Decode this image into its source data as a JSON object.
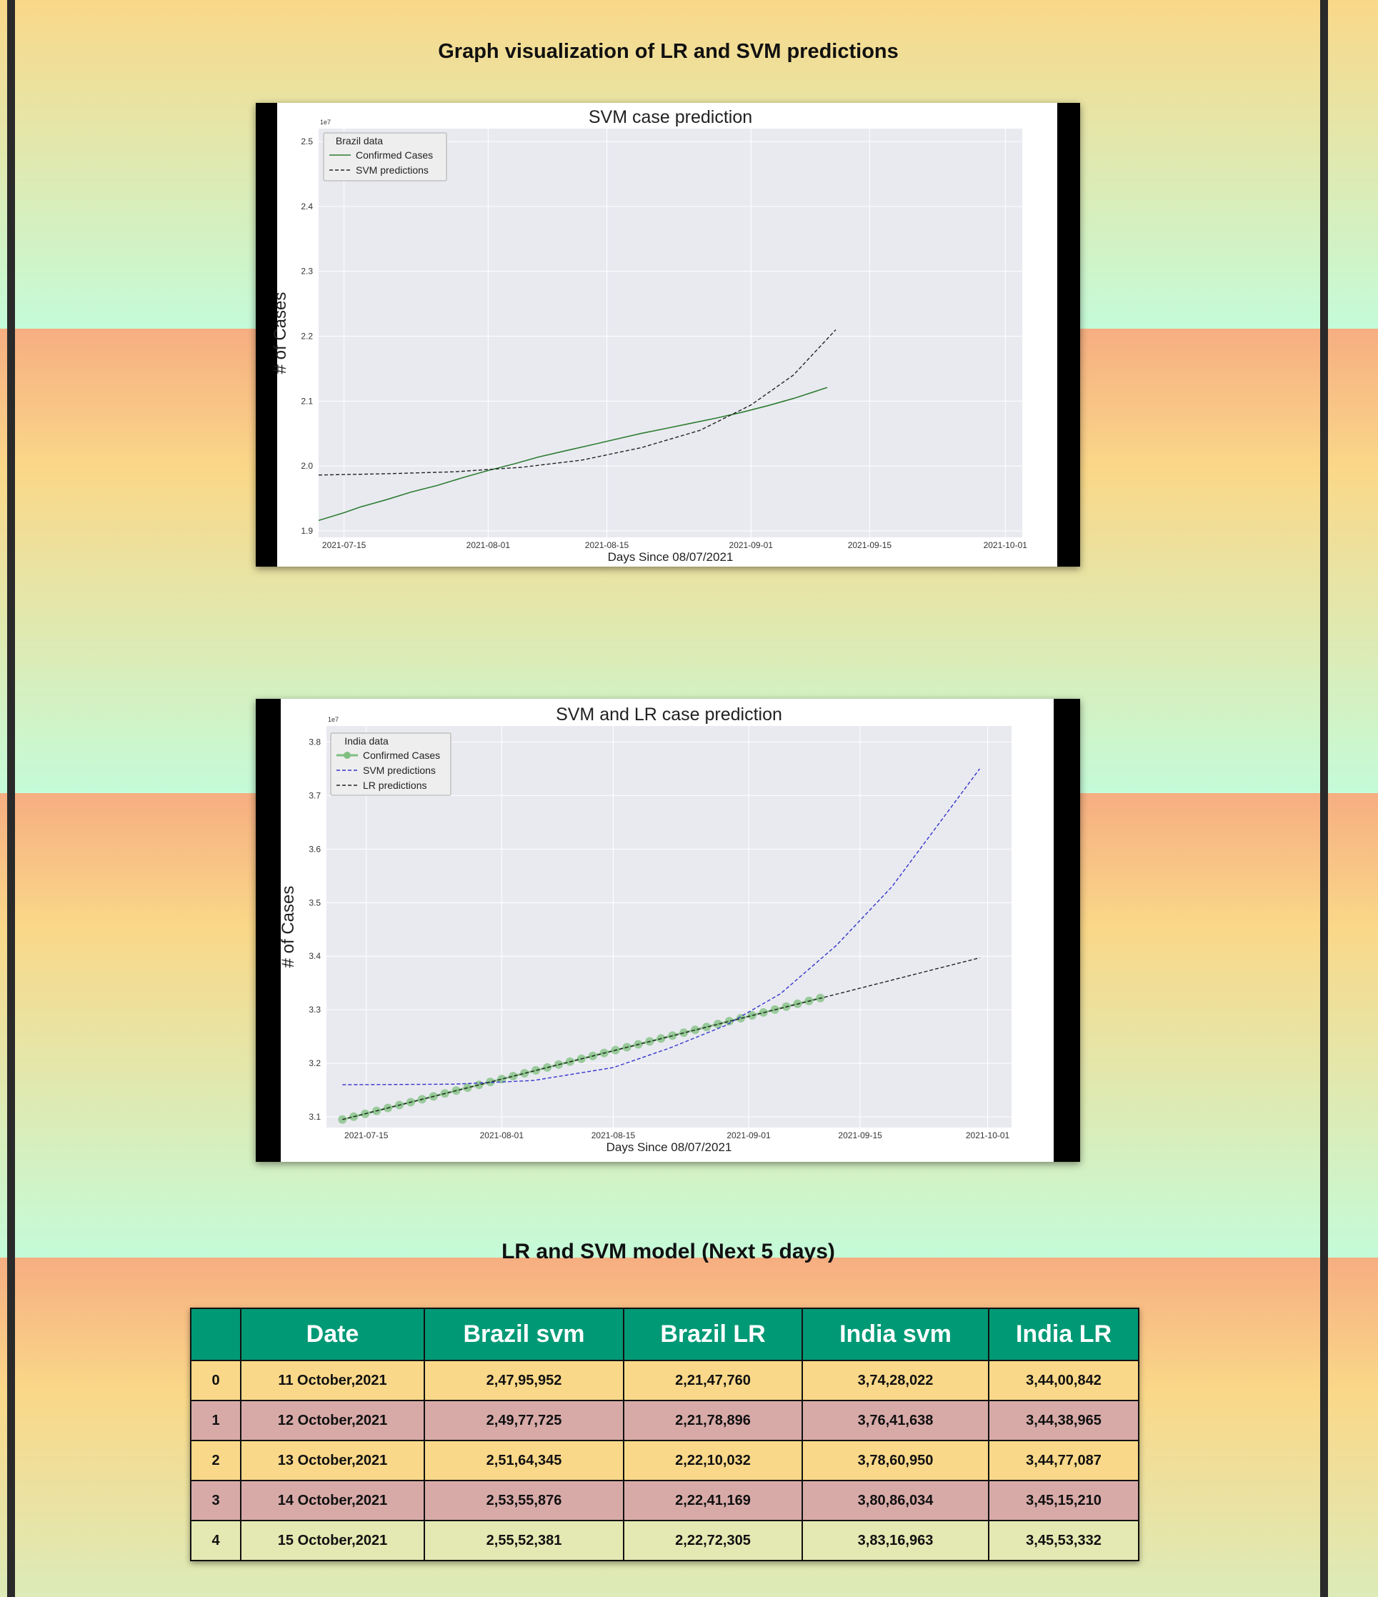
{
  "page": {
    "heading": "Graph visualization of LR and SVM predictions",
    "table_heading": "LR and SVM model (Next 5 days)"
  },
  "charts": [
    {
      "type": "line",
      "title": "SVM case prediction",
      "xlabel": "Days Since 08/07/2021",
      "ylabel": "# of Cases",
      "y_exponent": "1e7",
      "legend_title": "Brazil data",
      "legend_position": "upper-left",
      "grid": true,
      "x_ticks": [
        "2021-07-15",
        "2021-08-01",
        "2021-08-15",
        "2021-09-01",
        "2021-09-15",
        "2021-10-01"
      ],
      "y_ticks": [
        "1.9",
        "2.0",
        "2.1",
        "2.2",
        "2.3",
        "2.4",
        "2.5"
      ],
      "xlim": [
        "2021-07-12",
        "2021-10-03"
      ],
      "ylim": [
        1.89,
        2.52
      ],
      "series": [
        {
          "name": "Confirmed Cases",
          "style": "solid",
          "color": "#2e7d32",
          "x": [
            "2021-07-12",
            "2021-07-15",
            "2021-07-17",
            "2021-07-20",
            "2021-07-23",
            "2021-07-26",
            "2021-07-29",
            "2021-08-01",
            "2021-08-04",
            "2021-08-07",
            "2021-08-10",
            "2021-08-13",
            "2021-08-16",
            "2021-08-19",
            "2021-08-22",
            "2021-08-25",
            "2021-08-28",
            "2021-08-31",
            "2021-09-03",
            "2021-09-06",
            "2021-09-10"
          ],
          "values": [
            1.916,
            1.928,
            1.937,
            1.948,
            1.96,
            1.97,
            1.982,
            1.993,
            2.003,
            2.014,
            2.023,
            2.032,
            2.041,
            2.05,
            2.058,
            2.066,
            2.074,
            2.083,
            2.093,
            2.104,
            2.121
          ]
        },
        {
          "name": "SVM predictions",
          "style": "dashed",
          "color": "#222222",
          "x": [
            "2021-07-12",
            "2021-07-20",
            "2021-07-28",
            "2021-08-05",
            "2021-08-12",
            "2021-08-19",
            "2021-08-26",
            "2021-09-01",
            "2021-09-06",
            "2021-09-11"
          ],
          "values": [
            1.986,
            1.988,
            1.991,
            1.998,
            2.009,
            2.028,
            2.055,
            2.094,
            2.14,
            2.21
          ]
        }
      ]
    },
    {
      "type": "line",
      "title": "SVM and LR case prediction",
      "xlabel": "Days Since 08/07/2021",
      "ylabel": "# of Cases",
      "y_exponent": "1e7",
      "legend_title": "India data",
      "legend_position": "upper-left",
      "grid": true,
      "x_ticks": [
        "2021-07-15",
        "2021-08-01",
        "2021-08-15",
        "2021-09-01",
        "2021-09-15",
        "2021-10-01"
      ],
      "y_ticks": [
        "3.1",
        "3.2",
        "3.3",
        "3.4",
        "3.5",
        "3.6",
        "3.7",
        "3.8"
      ],
      "xlim": [
        "2021-07-10",
        "2021-10-04"
      ],
      "ylim": [
        3.08,
        3.83
      ],
      "series": [
        {
          "name": "Confirmed Cases",
          "style": "markers",
          "color": "#7fbf7f",
          "x": [
            "2021-07-12",
            "2021-09-10"
          ],
          "values": [
            3.095,
            3.322
          ]
        },
        {
          "name": "SVM predictions",
          "style": "dashed",
          "color": "#3333cc",
          "x": [
            "2021-07-12",
            "2021-07-26",
            "2021-08-05",
            "2021-08-15",
            "2021-08-22",
            "2021-08-29",
            "2021-09-05",
            "2021-09-12",
            "2021-09-19",
            "2021-09-26",
            "2021-09-30"
          ],
          "values": [
            3.16,
            3.161,
            3.168,
            3.192,
            3.228,
            3.27,
            3.33,
            3.42,
            3.53,
            3.67,
            3.75
          ]
        },
        {
          "name": "LR predictions",
          "style": "dashed",
          "color": "#222222",
          "x": [
            "2021-07-12",
            "2021-09-30"
          ],
          "values": [
            3.095,
            3.397
          ]
        }
      ]
    }
  ],
  "table": {
    "headers": [
      "",
      "Date",
      "Brazil svm",
      "Brazil LR",
      "India svm",
      "India LR"
    ],
    "rows": [
      [
        "0",
        "11 October,2021",
        "2,47,95,952",
        "2,21,47,760",
        "3,74,28,022",
        "3,44,00,842"
      ],
      [
        "1",
        "12 October,2021",
        "2,49,77,725",
        "2,21,78,896",
        "3,76,41,638",
        "3,44,38,965"
      ],
      [
        "2",
        "13 October,2021",
        "2,51,64,345",
        "2,22,10,032",
        "3,78,60,950",
        "3,44,77,087"
      ],
      [
        "3",
        "14 October,2021",
        "2,53,55,876",
        "2,22,41,169",
        "3,80,86,034",
        "3,45,15,210"
      ],
      [
        "4",
        "15 October,2021",
        "2,55,52,381",
        "2,22,72,305",
        "3,83,16,963",
        "3,45,53,332"
      ]
    ]
  }
}
